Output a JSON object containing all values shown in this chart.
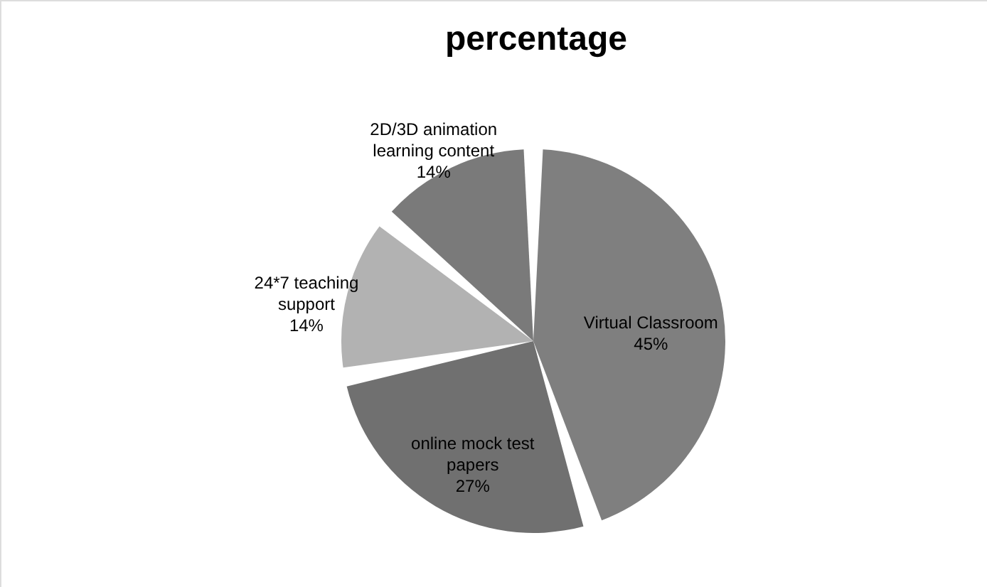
{
  "chart_data": {
    "type": "pie",
    "title": "percentage",
    "categories": [
      "Virtual Classroom",
      "online mock test papers",
      "24*7 teaching support",
      "2D/3D animation learning content"
    ],
    "values": [
      45,
      27,
      14,
      14
    ],
    "value_labels": [
      "45%",
      "27%",
      "14%",
      "14%"
    ],
    "colors": [
      "#7f7f7f",
      "#707070",
      "#b2b2b2",
      "#7a7a7a"
    ]
  }
}
